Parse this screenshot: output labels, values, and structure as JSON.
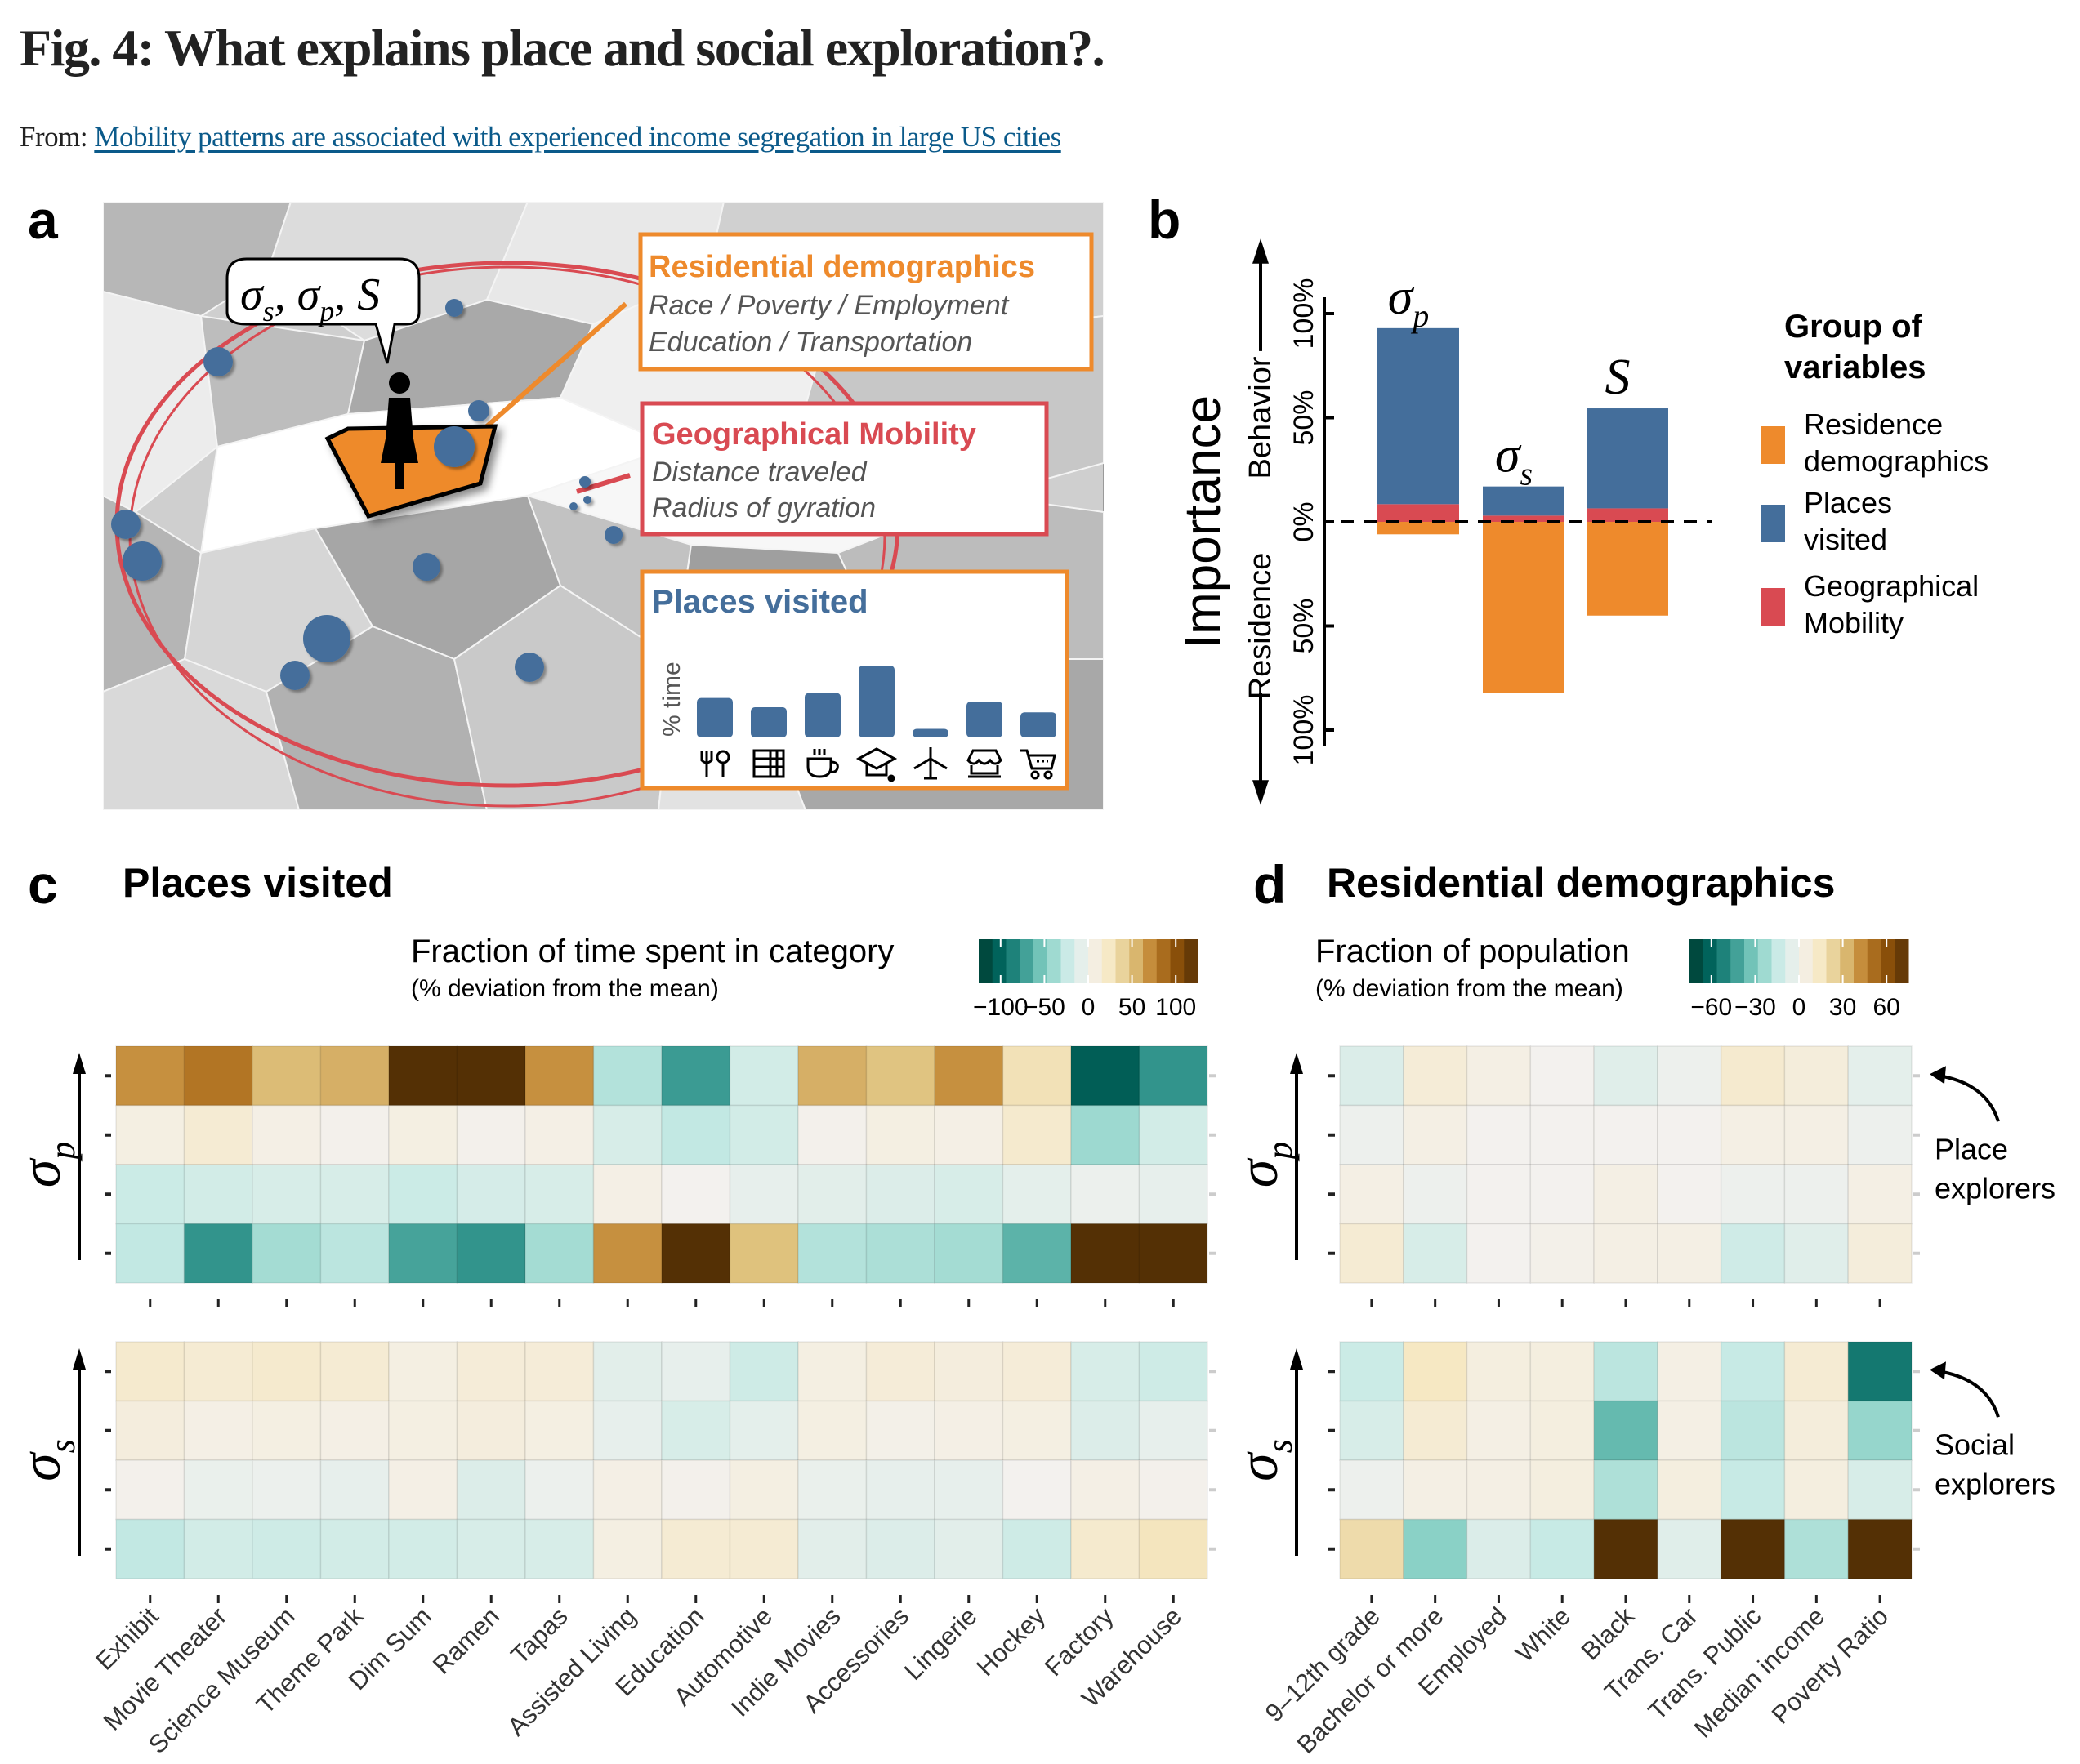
{
  "page": {
    "title": "Fig. 4: What explains place and social exploration?.",
    "from_label": "From:",
    "from_link": "Mobility patterns are associated with experienced income segregation in large US cities"
  },
  "panel_a": {
    "label": "a",
    "bubble_text": {
      "s1": "σ",
      "sub1": "s",
      "s2": "σ",
      "sub2": "p",
      "s3": "S"
    },
    "residential_box": {
      "title": "Residential demographics",
      "line1": "Race / Poverty / Employment",
      "line2": "Education / Transportation"
    },
    "mobility_box": {
      "title": "Geographical Mobility",
      "line1": "Distance traveled",
      "line2": "Radius of gyration"
    },
    "places_box": {
      "title": "Places visited",
      "ylabel": "% time",
      "bars": [
        {
          "icon": "restaurant-icon",
          "value": 0.55
        },
        {
          "icon": "shop-shelf-icon",
          "value": 0.42
        },
        {
          "icon": "coffee-cup-icon",
          "value": 0.62
        },
        {
          "icon": "education-cap-icon",
          "value": 1.0
        },
        {
          "icon": "airport-icon",
          "value": 0.12
        },
        {
          "icon": "store-front-icon",
          "value": 0.5
        },
        {
          "icon": "shopping-cart-icon",
          "value": 0.35
        }
      ]
    },
    "colors": {
      "orange": "#ee8a2c",
      "red": "#d94a52",
      "blue": "#446e9b"
    }
  },
  "chart_data": [
    {
      "id": "b",
      "type": "bar",
      "stacked": true,
      "panel_label": "b",
      "title": "",
      "ylabel": "Importance",
      "ylabel_up": "Behavior",
      "ylabel_down": "Residence",
      "ylim": [
        -100,
        100
      ],
      "yticks": [
        100,
        50,
        0,
        -50,
        -100
      ],
      "ytick_labels": [
        "100%",
        "50%",
        "0%",
        "50%",
        "100%"
      ],
      "categories": [
        "σp",
        "σs",
        "S"
      ],
      "category_labels": [
        {
          "main": "σ",
          "sub": "p"
        },
        {
          "main": "σ",
          "sub": "s"
        },
        {
          "main": "S",
          "sub": ""
        }
      ],
      "series": [
        {
          "name": "Geographical Mobility",
          "color": "#d94a52",
          "values": [
            8.5,
            3,
            6.5
          ],
          "direction": "up"
        },
        {
          "name": "Places visited",
          "color": "#446e9b",
          "values": [
            84.5,
            14,
            48
          ],
          "direction": "up"
        },
        {
          "name": "Residence demographics",
          "color": "#ee8a2c",
          "values": [
            6,
            82,
            45
          ],
          "direction": "down"
        }
      ],
      "zero_line": "dashed",
      "legend": {
        "title_line1": "Group of",
        "title_line2": "variables",
        "placement": "right",
        "items": [
          {
            "line1": "Residence",
            "line2": "demographics",
            "color": "#ee8a2c"
          },
          {
            "line1": "Places",
            "line2": "visited",
            "color": "#446e9b"
          },
          {
            "line1": "Geographical",
            "line2": "Mobility",
            "color": "#d94a52"
          }
        ]
      }
    },
    {
      "id": "c",
      "type": "heatmap",
      "panel_label": "c",
      "title": "Places visited",
      "colorbar_title": "Fraction of time spent in category",
      "colorbar_subtitle": "(% deviation from the mean)",
      "colorbar_ticks": [
        -100,
        -50,
        0,
        50,
        100
      ],
      "colorbar_tick_labels": [
        "−100",
        "−50",
        "0",
        "50",
        "100"
      ],
      "vmin": -125,
      "vmax": 125,
      "columns": [
        "Exhibit",
        "Movie Theater",
        "Science Museum",
        "Theme Park",
        "Dim Sum",
        "Ramen",
        "Tapas",
        "Assisted Living",
        "Education",
        "Automotive",
        "Indie Movies",
        "Accessories",
        "Lingerie",
        "Hockey",
        "Factory",
        "Warehouse"
      ],
      "blocks": [
        {
          "ylabel": "σp",
          "ylabel_main": "σ",
          "ylabel_sub": "p",
          "rows_top_to_bottom": [
            [
              52,
              62,
              38,
              42,
              108,
              100,
              52,
              -22,
              -55,
              -12,
              42,
              35,
              52,
              20,
              -82,
              -58
            ],
            [
              4,
              10,
              3,
              1,
              4,
              1,
              3,
              -10,
              -18,
              -12,
              1,
              4,
              3,
              12,
              -28,
              -12
            ],
            [
              -15,
              -12,
              -10,
              -10,
              -15,
              -11,
              -10,
              3,
              0,
              -4,
              -6,
              -8,
              -10,
              -5,
              -2,
              -4
            ],
            [
              -18,
              -58,
              -26,
              -20,
              -52,
              -58,
              -26,
              52,
              120,
              36,
              -22,
              -24,
              -26,
              -46,
              125,
              125
            ]
          ]
        },
        {
          "ylabel": "σs",
          "ylabel_main": "σ",
          "ylabel_sub": "s",
          "rows_top_to_bottom": [
            [
              12,
              10,
              12,
              10,
              4,
              8,
              8,
              -6,
              -4,
              -14,
              4,
              8,
              6,
              8,
              -10,
              -14
            ],
            [
              6,
              3,
              4,
              3,
              4,
              6,
              4,
              -4,
              -10,
              -5,
              4,
              2,
              3,
              4,
              -8,
              -4
            ],
            [
              1,
              -3,
              -2,
              -4,
              3,
              -8,
              -2,
              3,
              1,
              4,
              -3,
              -4,
              -4,
              0,
              3,
              1
            ],
            [
              -18,
              -12,
              -14,
              -12,
              -12,
              -10,
              -10,
              4,
              10,
              10,
              -6,
              -8,
              -6,
              -14,
              12,
              18
            ]
          ]
        }
      ]
    },
    {
      "id": "d",
      "type": "heatmap",
      "panel_label": "d",
      "title": "Residential demographics",
      "colorbar_title": "Fraction of population",
      "colorbar_subtitle": "(% deviation from the mean)",
      "colorbar_ticks": [
        -60,
        -30,
        0,
        30,
        60
      ],
      "colorbar_tick_labels": [
        "−60",
        "−30",
        "0",
        "30",
        "60"
      ],
      "vmin": -75,
      "vmax": 75,
      "columns": [
        "9–12th grade",
        "Bachelor or more",
        "Employed",
        "White",
        "Black",
        "Trans. Car",
        "Trans. Public",
        "Median income",
        "Poverty Ratio"
      ],
      "annotations": [
        {
          "text_line1": "Place",
          "text_line2": "explorers",
          "block": 0,
          "row": 0
        },
        {
          "text_line1": "Social",
          "text_line2": "explorers",
          "block": 1,
          "row": 0
        }
      ],
      "blocks": [
        {
          "ylabel": "σp",
          "ylabel_main": "σ",
          "ylabel_sub": "p",
          "rows_top_to_bottom": [
            [
              -5,
              5,
              2,
              0,
              -4,
              -1,
              7,
              4,
              -3
            ],
            [
              -1,
              2,
              0,
              0,
              0,
              0,
              2,
              2,
              -1
            ],
            [
              2,
              -1,
              0,
              0,
              2,
              0,
              -1,
              -1,
              2
            ],
            [
              6,
              -6,
              0,
              1,
              2,
              2,
              -8,
              -4,
              4
            ]
          ]
        },
        {
          "ylabel": "σs",
          "ylabel_main": "σ",
          "ylabel_sub": "s",
          "rows_top_to_bottom": [
            [
              -9,
              10,
              3,
              3,
              -12,
              2,
              -10,
              6,
              -42
            ],
            [
              -6,
              6,
              2,
              3,
              -26,
              2,
              -12,
              4,
              -18
            ],
            [
              -1,
              2,
              2,
              3,
              -14,
              3,
              -10,
              3,
              -6
            ],
            [
              14,
              -20,
              -5,
              -10,
              75,
              -4,
              75,
              -14,
              75
            ]
          ]
        }
      ]
    }
  ]
}
